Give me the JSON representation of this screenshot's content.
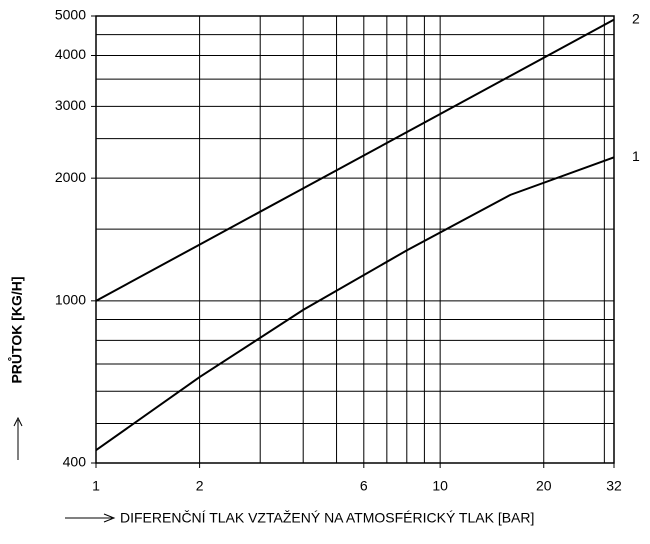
{
  "chart_data": {
    "type": "line",
    "x_label": "DIFERENČNÍ TLAK VZTAŽENÝ NA ATMOSFÉRICKÝ TLAK [BAR]",
    "y_label": "PRŮTOK [KG/H]",
    "x": [
      1,
      2,
      4,
      8,
      16,
      32
    ],
    "series": [
      {
        "name": "2",
        "color": "#000000",
        "values": [
          1000,
          1374,
          1888,
          2594,
          3565,
          4900
        ]
      },
      {
        "name": "1",
        "color": "#000000",
        "values": [
          430,
          650,
          950,
          1330,
          1820,
          2250
        ]
      }
    ],
    "xlim": [
      1,
      32
    ],
    "ylim": [
      400,
      5000
    ],
    "log_x": true,
    "log_y": true,
    "xticks": [
      1,
      2,
      6,
      10,
      20,
      32
    ],
    "yticks": [
      400,
      1000,
      2000,
      3000,
      4000,
      5000
    ],
    "xgrid": [
      1,
      2,
      3,
      4,
      5,
      6,
      7,
      8,
      9,
      10,
      20,
      30
    ],
    "ygrid": [
      400,
      500,
      600,
      700,
      800,
      900,
      1000,
      1500,
      2000,
      2500,
      3000,
      3500,
      4000,
      4500,
      5000
    ]
  }
}
